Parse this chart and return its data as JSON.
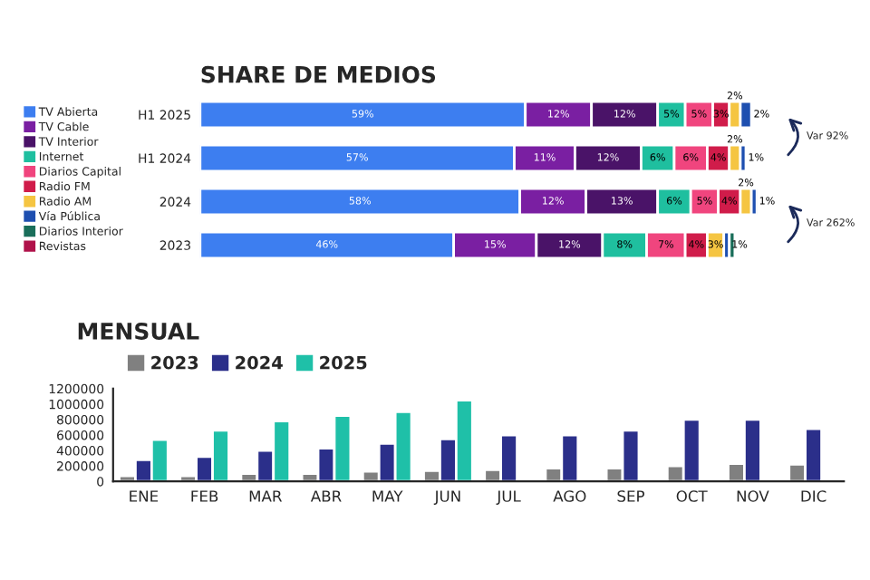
{
  "chart_data": [
    {
      "type": "bar",
      "title": "SHARE DE MEDIOS",
      "orientation": "horizontal",
      "stacked": true,
      "xlim": [
        0,
        101
      ],
      "tick_labels": "y",
      "legend": "left",
      "categories": [
        "H1 2025",
        "H1 2024",
        "2024",
        "2023"
      ],
      "series": [
        {
          "name": "TV Abierta",
          "color": "#3d7ef0",
          "values": [
            59,
            57,
            58,
            46
          ],
          "value_labels": [
            "59%",
            "57%",
            "58%",
            "46%"
          ]
        },
        {
          "name": "TV Cable",
          "color": "#7a1fa2",
          "values": [
            12,
            11,
            12,
            15
          ],
          "value_labels": [
            "12%",
            "11%",
            "12%",
            "15%"
          ]
        },
        {
          "name": "TV Interior",
          "color": "#4a1368",
          "values": [
            12,
            12,
            13,
            12
          ],
          "value_labels": [
            "12%",
            "12%",
            "13%",
            "12%"
          ]
        },
        {
          "name": "Internet",
          "color": "#1fbf9f",
          "values": [
            5,
            6,
            6,
            8
          ],
          "value_labels": [
            "5%",
            "6%",
            "6%",
            "8%"
          ]
        },
        {
          "name": "Diarios Capital",
          "color": "#f0457e",
          "values": [
            5,
            6,
            5,
            7
          ],
          "value_labels": [
            "5%",
            "6%",
            "5%",
            "7%"
          ]
        },
        {
          "name": "Radio FM",
          "color": "#d01c4a",
          "values": [
            3,
            4,
            4,
            4
          ],
          "value_labels": [
            "3%",
            "4%",
            "4%",
            "4%"
          ]
        },
        {
          "name": "Radio AM",
          "color": "#f5c542",
          "values": [
            2,
            2,
            2,
            3
          ],
          "value_labels": [
            "2%",
            "2%",
            "2%",
            "3%"
          ]
        },
        {
          "name": "Vía Pública",
          "color": "#1e4fb0",
          "values": [
            2,
            1,
            1,
            1
          ],
          "value_labels": [
            "2%",
            "1%",
            "1%",
            "1%"
          ]
        },
        {
          "name": "Diarios Interior",
          "color": "#1a6e5a",
          "values": [
            null,
            null,
            null,
            1
          ],
          "value_labels": [
            null,
            null,
            null,
            null
          ]
        },
        {
          "name": "Revistas",
          "color": "#b0124a",
          "values": [
            null,
            null,
            null,
            null
          ],
          "value_labels": [
            null,
            null,
            null,
            null
          ]
        }
      ],
      "annotations": [
        "Var 92%",
        "Var 262%"
      ]
    },
    {
      "type": "bar",
      "title": "MENSUAL",
      "legend": "top left",
      "ylim": [
        0,
        1200000
      ],
      "yticks": [
        0,
        200000,
        400000,
        600000,
        800000,
        1000000,
        1200000
      ],
      "categories": [
        "ENE",
        "FEB",
        "MAR",
        "ABR",
        "MAY",
        "JUN",
        "JUL",
        "AGO",
        "SEP",
        "OCT",
        "NOV",
        "DIC"
      ],
      "series": [
        {
          "name": "2023",
          "color": "#808080",
          "values": [
            70000,
            70000,
            100000,
            100000,
            130000,
            140000,
            150000,
            170000,
            170000,
            200000,
            230000,
            220000
          ]
        },
        {
          "name": "2024",
          "color": "#2b2f8a",
          "values": [
            280000,
            320000,
            400000,
            430000,
            490000,
            550000,
            600000,
            600000,
            660000,
            800000,
            800000,
            680000
          ]
        },
        {
          "name": "2025",
          "color": "#1fc0a8",
          "values": [
            540000,
            660000,
            780000,
            850000,
            900000,
            1050000,
            null,
            null,
            null,
            null,
            null,
            null
          ]
        }
      ]
    }
  ]
}
